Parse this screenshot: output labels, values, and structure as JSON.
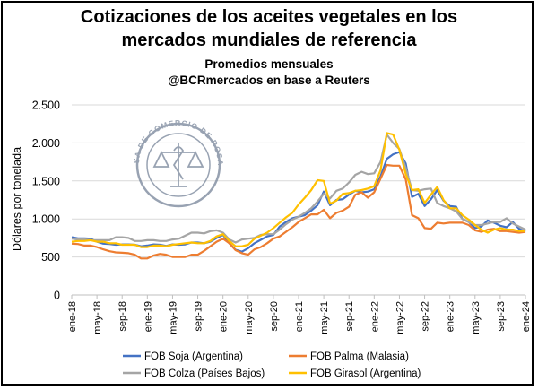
{
  "header": {
    "title_line1": "Cotizaciones de los aceites vegetales en los",
    "title_line2": "mercados mundiales de referencia",
    "subtitle_line1": "Promedios mensuales",
    "subtitle_line2": "@BCRmercados en base a Reuters"
  },
  "seal": {
    "text": "BOLSA DE COMERCIO DE ROSARIO"
  },
  "chart_data": {
    "type": "line",
    "ylabel": "Dólares por tonelada",
    "ylim": [
      0,
      2500
    ],
    "yticks": [
      0,
      500,
      1000,
      1500,
      2000,
      2500
    ],
    "ytick_labels": [
      "0",
      "500",
      "1.000",
      "1.500",
      "2.000",
      "2.500"
    ],
    "grid": "horizontal",
    "legend_position": "bottom",
    "xtick_labels": [
      "ene-18",
      "may-18",
      "sep-18",
      "ene-19",
      "may-19",
      "sep-19",
      "ene-20",
      "may-20",
      "sep-20",
      "ene-21",
      "may-21",
      "sep-21",
      "ene-22",
      "may-22",
      "sep-22",
      "ene-23",
      "may-23",
      "sep-23",
      "ene-24"
    ],
    "x": [
      "ene-18",
      "feb-18",
      "mar-18",
      "abr-18",
      "may-18",
      "jun-18",
      "jul-18",
      "ago-18",
      "sep-18",
      "oct-18",
      "nov-18",
      "dic-18",
      "ene-19",
      "feb-19",
      "mar-19",
      "abr-19",
      "may-19",
      "jun-19",
      "jul-19",
      "ago-19",
      "sep-19",
      "oct-19",
      "nov-19",
      "dic-19",
      "ene-20",
      "feb-20",
      "mar-20",
      "abr-20",
      "may-20",
      "jun-20",
      "jul-20",
      "ago-20",
      "sep-20",
      "oct-20",
      "nov-20",
      "dic-20",
      "ene-21",
      "feb-21",
      "mar-21",
      "abr-21",
      "may-21",
      "jun-21",
      "jul-21",
      "ago-21",
      "sep-21",
      "oct-21",
      "nov-21",
      "dic-21",
      "ene-22",
      "feb-22",
      "mar-22",
      "abr-22",
      "may-22",
      "jun-22",
      "jul-22",
      "ago-22",
      "sep-22",
      "oct-22",
      "nov-22",
      "dic-22",
      "ene-23",
      "feb-23",
      "mar-23",
      "abr-23",
      "may-23",
      "jun-23",
      "jul-23",
      "ago-23",
      "sep-23",
      "oct-23",
      "nov-23",
      "dic-23",
      "ene-24"
    ],
    "series": [
      {
        "name": "FOB Soja (Argentina)",
        "color": "#4472C4",
        "values": [
          760,
          745,
          745,
          740,
          700,
          675,
          670,
          660,
          665,
          665,
          660,
          640,
          650,
          665,
          660,
          645,
          665,
          660,
          665,
          690,
          690,
          680,
          700,
          750,
          790,
          680,
          595,
          570,
          615,
          680,
          725,
          770,
          790,
          900,
          960,
          1010,
          1030,
          1050,
          1110,
          1180,
          1360,
          1180,
          1250,
          1260,
          1320,
          1370,
          1350,
          1360,
          1390,
          1560,
          1790,
          1850,
          1880,
          1730,
          1290,
          1330,
          1170,
          1260,
          1380,
          1240,
          1170,
          1160,
          1000,
          960,
          880,
          900,
          980,
          950,
          910,
          890,
          960,
          870,
          830
        ]
      },
      {
        "name": "FOB Palma (Malasia)",
        "color": "#ED7D31",
        "values": [
          675,
          670,
          650,
          650,
          630,
          600,
          575,
          560,
          555,
          550,
          530,
          480,
          480,
          520,
          540,
          530,
          500,
          500,
          500,
          530,
          530,
          580,
          640,
          700,
          740,
          680,
          590,
          550,
          530,
          600,
          630,
          680,
          740,
          770,
          830,
          890,
          960,
          1010,
          1060,
          1060,
          1120,
          1010,
          1080,
          1110,
          1160,
          1320,
          1350,
          1280,
          1350,
          1530,
          1710,
          1700,
          1700,
          1520,
          1050,
          1010,
          880,
          870,
          950,
          940,
          950,
          950,
          950,
          920,
          850,
          830,
          860,
          870,
          840,
          840,
          830,
          820,
          830
        ]
      },
      {
        "name": "FOB Colza (Países Bajos)",
        "color": "#A5A5A5",
        "values": [
          740,
          730,
          730,
          720,
          720,
          720,
          720,
          760,
          760,
          750,
          710,
          710,
          720,
          720,
          710,
          710,
          730,
          740,
          780,
          820,
          820,
          810,
          840,
          850,
          820,
          730,
          690,
          730,
          740,
          750,
          790,
          800,
          800,
          860,
          930,
          990,
          1030,
          1080,
          1140,
          1230,
          1330,
          1270,
          1370,
          1400,
          1480,
          1580,
          1620,
          1590,
          1600,
          1750,
          2110,
          2000,
          1920,
          1670,
          1380,
          1370,
          1390,
          1400,
          1210,
          1170,
          1140,
          1100,
          1000,
          960,
          920,
          920,
          940,
          960,
          960,
          1010,
          940,
          900,
          860
        ]
      },
      {
        "name": "FOB Girasol (Argentina)",
        "color": "#FFC000",
        "values": [
          700,
          710,
          710,
          720,
          700,
          700,
          680,
          680,
          660,
          660,
          660,
          630,
          630,
          650,
          650,
          640,
          660,
          670,
          680,
          690,
          680,
          680,
          710,
          770,
          800,
          710,
          640,
          640,
          660,
          740,
          780,
          820,
          880,
          950,
          1020,
          1080,
          1190,
          1280,
          1380,
          1510,
          1500,
          1200,
          1240,
          1330,
          1340,
          1370,
          1380,
          1400,
          1430,
          1640,
          2130,
          2110,
          1910,
          1590,
          1380,
          1390,
          1210,
          1320,
          1420,
          1250,
          1140,
          1140,
          1050,
          990,
          920,
          860,
          820,
          860,
          880,
          860,
          860,
          840,
          840
        ]
      }
    ]
  }
}
